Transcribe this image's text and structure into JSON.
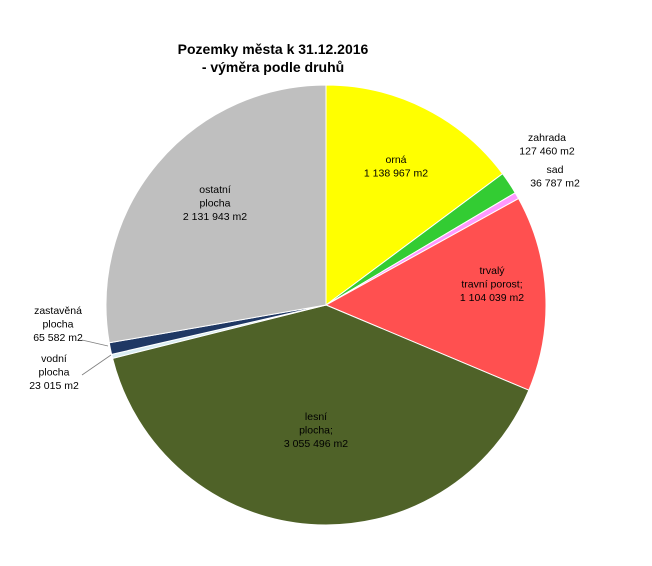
{
  "chart_data": {
    "type": "pie",
    "title_lines": [
      "Pozemky města k 31.12.2016",
      "- výměra podle druhů"
    ],
    "start_angle_deg": 0,
    "direction": "clockwise",
    "slices": [
      {
        "name": "orná",
        "value": 1138967,
        "label_lines": [
          "orná",
          "1 138 967 m2"
        ],
        "color": "#FFFF00"
      },
      {
        "name": "zahrada",
        "value": 127460,
        "label_lines": [
          "zahrada",
          "127 460 m2"
        ],
        "color": "#33CC33"
      },
      {
        "name": "sad",
        "value": 36787,
        "label_lines": [
          "sad",
          "36 787 m2"
        ],
        "color": "#FF99FF"
      },
      {
        "name": "trvalý travní porost",
        "value": 1104039,
        "label_lines": [
          "trvalý",
          "travní porost;",
          "1 104 039 m2"
        ],
        "color": "#FF5050"
      },
      {
        "name": "lesní plocha",
        "value": 3055496,
        "label_lines": [
          "lesní",
          "plocha;",
          "3 055 496 m2"
        ],
        "color": "#4F6228"
      },
      {
        "name": "vodní plocha",
        "value": 23015,
        "label_lines": [
          "vodní",
          "plocha",
          "23 015 m2"
        ],
        "color": "#DAEEF3"
      },
      {
        "name": "zastavěná plocha",
        "value": 65582,
        "label_lines": [
          "zastavěná",
          "plocha",
          "65 582 m2"
        ],
        "color": "#1F3864"
      },
      {
        "name": "ostatní plocha",
        "value": 2131943,
        "label_lines": [
          "ostatní",
          "plocha",
          "2 131 943 m2"
        ],
        "color": "#BFBFBF"
      }
    ],
    "legend": "none"
  }
}
